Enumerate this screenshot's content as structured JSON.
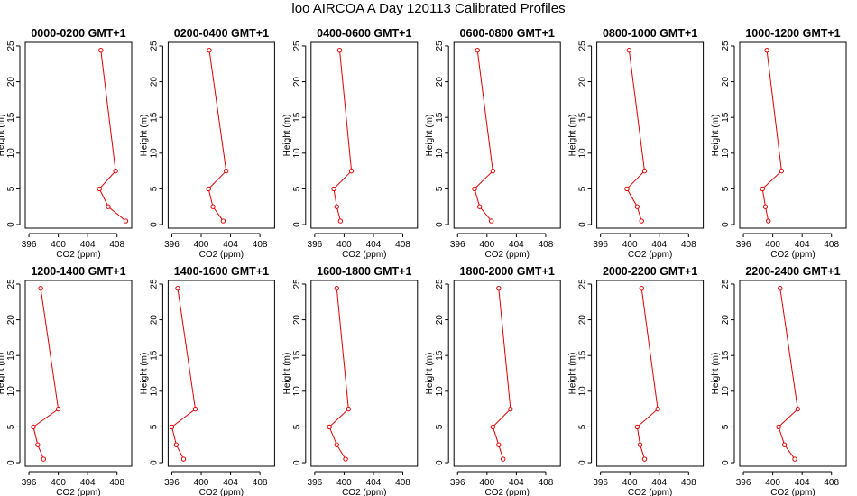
{
  "title": "loo AIRCOA A  Day 120113  Calibrated Profiles",
  "colors": {
    "series": "#dd0000",
    "axis": "#000000"
  },
  "chart_data": [
    {
      "type": "line",
      "title": "0000-0200 GMT+1",
      "xlabel": "CO2 (ppm)",
      "ylabel": "Height (m)",
      "xlim": [
        395.5,
        410
      ],
      "ylim": [
        -0.5,
        25.5
      ],
      "xticks": [
        396,
        400,
        404,
        408
      ],
      "yticks": [
        0,
        5,
        10,
        15,
        20,
        25
      ],
      "x": [
        409.2,
        406.8,
        405.6,
        407.8,
        405.8
      ],
      "y": [
        0.5,
        2.5,
        5,
        7.5,
        24.4
      ]
    },
    {
      "type": "line",
      "title": "0200-0400 GMT+1",
      "xlabel": "CO2 (ppm)",
      "ylabel": "Height (m)",
      "xlim": [
        395.5,
        410
      ],
      "ylim": [
        -0.5,
        25.5
      ],
      "xticks": [
        396,
        400,
        404,
        408
      ],
      "yticks": [
        0,
        5,
        10,
        15,
        20,
        25
      ],
      "x": [
        403.0,
        401.6,
        401.0,
        403.4,
        401.1
      ],
      "y": [
        0.5,
        2.5,
        5,
        7.5,
        24.4
      ]
    },
    {
      "type": "line",
      "title": "0400-0600 GMT+1",
      "xlabel": "CO2 (ppm)",
      "ylabel": "Height (m)",
      "xlim": [
        395.5,
        410
      ],
      "ylim": [
        -0.5,
        25.5
      ],
      "xticks": [
        396,
        400,
        404,
        408
      ],
      "yticks": [
        0,
        5,
        10,
        15,
        20,
        25
      ],
      "x": [
        399.5,
        399.0,
        398.6,
        401.0,
        399.4
      ],
      "y": [
        0.5,
        2.5,
        5,
        7.5,
        24.4
      ]
    },
    {
      "type": "line",
      "title": "0600-0800 GMT+1",
      "xlabel": "CO2 (ppm)",
      "ylabel": "Height (m)",
      "xlim": [
        395.5,
        410
      ],
      "ylim": [
        -0.5,
        25.5
      ],
      "xticks": [
        396,
        400,
        404,
        408
      ],
      "yticks": [
        0,
        5,
        10,
        15,
        20,
        25
      ],
      "x": [
        400.6,
        399.0,
        398.3,
        400.8,
        398.7
      ],
      "y": [
        0.5,
        2.5,
        5,
        7.5,
        24.4
      ]
    },
    {
      "type": "line",
      "title": "0800-1000 GMT+1",
      "xlabel": "CO2 (ppm)",
      "ylabel": "Height (m)",
      "xlim": [
        395.5,
        410
      ],
      "ylim": [
        -0.5,
        25.5
      ],
      "xticks": [
        396,
        400,
        404,
        408
      ],
      "yticks": [
        0,
        5,
        10,
        15,
        20,
        25
      ],
      "x": [
        401.6,
        401.0,
        399.6,
        402.0,
        399.9
      ],
      "y": [
        0.5,
        2.5,
        5,
        7.5,
        24.4
      ]
    },
    {
      "type": "line",
      "title": "1000-1200 GMT+1",
      "xlabel": "CO2 (ppm)",
      "ylabel": "Height (m)",
      "xlim": [
        395.5,
        410
      ],
      "ylim": [
        -0.5,
        25.5
      ],
      "xticks": [
        396,
        400,
        404,
        408
      ],
      "yticks": [
        0,
        5,
        10,
        15,
        20,
        25
      ],
      "x": [
        399.4,
        399.0,
        398.6,
        401.2,
        399.2
      ],
      "y": [
        0.5,
        2.5,
        5,
        7.5,
        24.4
      ]
    },
    {
      "type": "line",
      "title": "1200-1400 GMT+1",
      "xlabel": "CO2 (ppm)",
      "ylabel": "Height (m)",
      "xlim": [
        395.5,
        410
      ],
      "ylim": [
        -0.5,
        25.5
      ],
      "xticks": [
        396,
        400,
        404,
        408
      ],
      "yticks": [
        0,
        5,
        10,
        15,
        20,
        25
      ],
      "x": [
        398.0,
        397.2,
        396.6,
        400.0,
        397.6
      ],
      "y": [
        0.5,
        2.5,
        5,
        7.5,
        24.4
      ]
    },
    {
      "type": "line",
      "title": "1400-1600 GMT+1",
      "xlabel": "CO2 (ppm)",
      "ylabel": "Height (m)",
      "xlim": [
        395.5,
        410
      ],
      "ylim": [
        -0.5,
        25.5
      ],
      "xticks": [
        396,
        400,
        404,
        408
      ],
      "yticks": [
        0,
        5,
        10,
        15,
        20,
        25
      ],
      "x": [
        397.6,
        396.6,
        396.0,
        399.2,
        396.8
      ],
      "y": [
        0.5,
        2.5,
        5,
        7.5,
        24.4
      ]
    },
    {
      "type": "line",
      "title": "1600-1800 GMT+1",
      "xlabel": "CO2 (ppm)",
      "ylabel": "Height (m)",
      "xlim": [
        395.5,
        410
      ],
      "ylim": [
        -0.5,
        25.5
      ],
      "xticks": [
        396,
        400,
        404,
        408
      ],
      "yticks": [
        0,
        5,
        10,
        15,
        20,
        25
      ],
      "x": [
        400.2,
        399.0,
        398.0,
        400.6,
        399.0
      ],
      "y": [
        0.5,
        2.5,
        5,
        7.5,
        24.4
      ]
    },
    {
      "type": "line",
      "title": "1800-2000 GMT+1",
      "xlabel": "CO2 (ppm)",
      "ylabel": "Height (m)",
      "xlim": [
        395.5,
        410
      ],
      "ylim": [
        -0.5,
        25.5
      ],
      "xticks": [
        396,
        400,
        404,
        408
      ],
      "yticks": [
        0,
        5,
        10,
        15,
        20,
        25
      ],
      "x": [
        402.2,
        401.6,
        400.8,
        403.2,
        401.6
      ],
      "y": [
        0.5,
        2.5,
        5,
        7.5,
        24.4
      ]
    },
    {
      "type": "line",
      "title": "2000-2200 GMT+1",
      "xlabel": "CO2 (ppm)",
      "ylabel": "Height (m)",
      "xlim": [
        395.5,
        410
      ],
      "ylim": [
        -0.5,
        25.5
      ],
      "xticks": [
        396,
        400,
        404,
        408
      ],
      "yticks": [
        0,
        5,
        10,
        15,
        20,
        25
      ],
      "x": [
        402.0,
        401.4,
        401.0,
        403.8,
        401.6
      ],
      "y": [
        0.5,
        2.5,
        5,
        7.5,
        24.4
      ]
    },
    {
      "type": "line",
      "title": "2200-2400 GMT+1",
      "xlabel": "CO2 (ppm)",
      "ylabel": "Height (m)",
      "xlim": [
        395.5,
        410
      ],
      "ylim": [
        -0.5,
        25.5
      ],
      "xticks": [
        396,
        400,
        404,
        408
      ],
      "yticks": [
        0,
        5,
        10,
        15,
        20,
        25
      ],
      "x": [
        403.0,
        401.6,
        400.8,
        403.4,
        401.0
      ],
      "y": [
        0.5,
        2.5,
        5,
        7.5,
        24.4
      ]
    }
  ]
}
